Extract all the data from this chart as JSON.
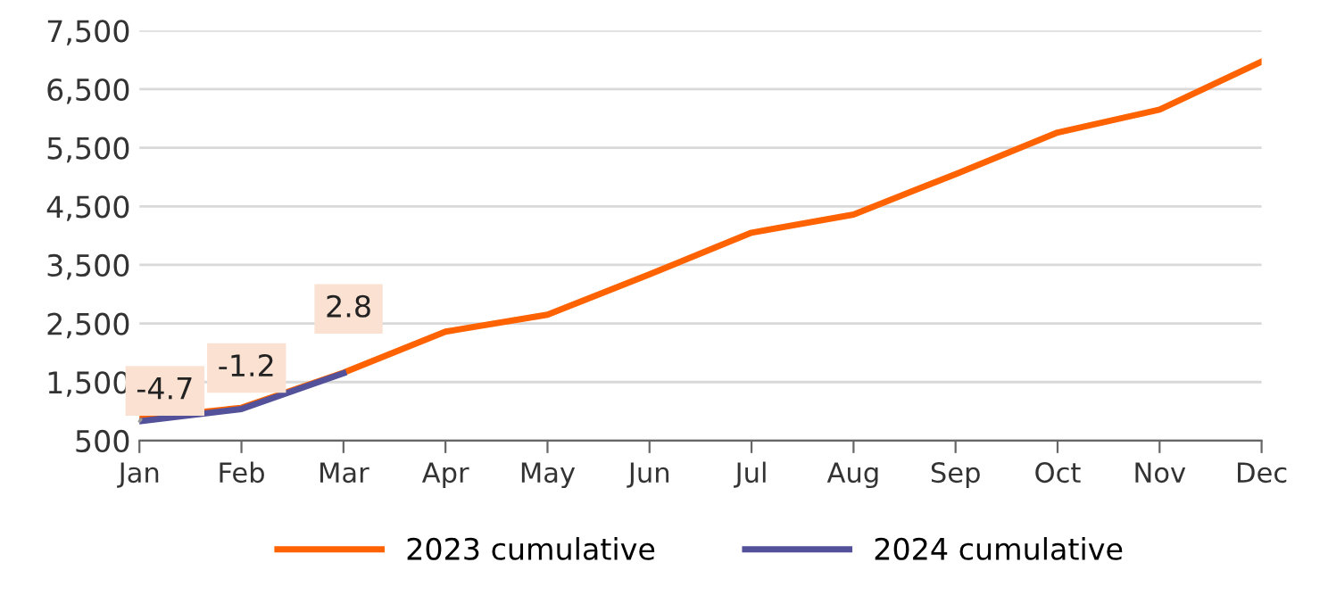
{
  "chart_data": {
    "type": "line",
    "categories": [
      "Jan",
      "Feb",
      "Mar",
      "Apr",
      "May",
      "Jun",
      "Jul",
      "Aug",
      "Sep",
      "Oct",
      "Nov",
      "Dec"
    ],
    "series": [
      {
        "name": "2023 cumulative",
        "color": "#ff6200",
        "values": [
          880,
          1060,
          1660,
          2360,
          2650,
          3340,
          4050,
          4360,
          5050,
          5760,
          6150,
          6970
        ]
      },
      {
        "name": "2024 cumulative",
        "color": "#525199",
        "values": [
          830,
          1040,
          1650,
          null,
          null,
          null,
          null,
          null,
          null,
          null,
          null,
          null
        ]
      }
    ],
    "ylim": [
      500,
      7500
    ],
    "yticks": [
      {
        "value": 500,
        "label": "500"
      },
      {
        "value": 1500,
        "label": "1,500"
      },
      {
        "value": 2500,
        "label": "2,500"
      },
      {
        "value": 3500,
        "label": "3,500"
      },
      {
        "value": 4500,
        "label": "4,500"
      },
      {
        "value": 5500,
        "label": "5,500"
      },
      {
        "value": 6500,
        "label": "6,500"
      },
      {
        "value": 7500,
        "label": "7,500"
      }
    ],
    "grid": "y",
    "legend": "bottom",
    "marker": "none",
    "line_style": "solid",
    "annotations": [
      {
        "text": "-4.7",
        "x": "Jan",
        "y": 830
      },
      {
        "text": "-1.2",
        "x": "Feb",
        "y": 1040
      },
      {
        "text": "2.8",
        "x": "Mar",
        "y": 1650
      }
    ]
  }
}
